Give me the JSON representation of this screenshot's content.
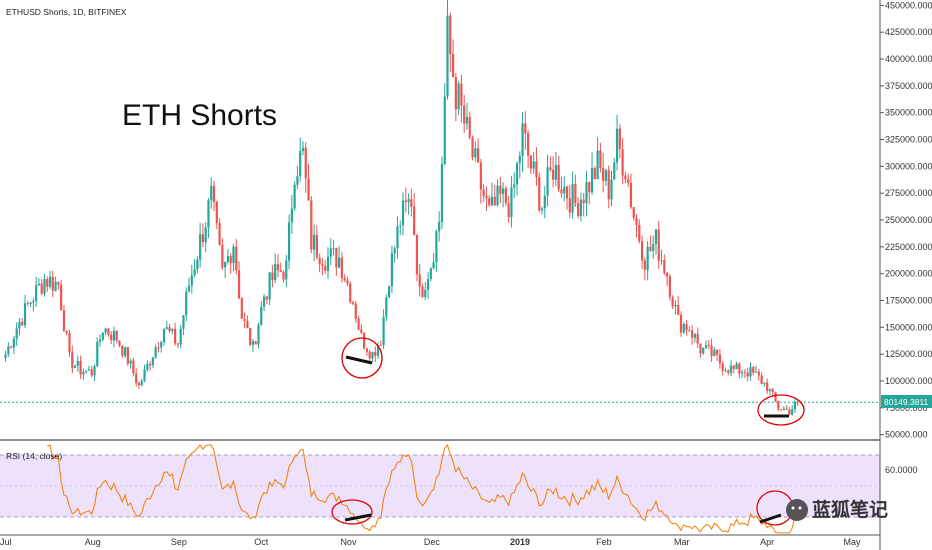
{
  "header": {
    "symbol_label": "ETHUSD Shorts, 1D, BITFINEX"
  },
  "annotation": {
    "title": "ETH Shorts"
  },
  "price_label": "80149.3811",
  "rsi_label": "RSI (14, close)",
  "watermark": {
    "text": "蓝狐笔记"
  },
  "colors": {
    "up": "#26a69a",
    "down": "#ef5350",
    "rsi_line": "#f57c00",
    "rsi_band": "#ede1fb",
    "price_line": "#26a69a",
    "annotation": "#e00000"
  },
  "chart_data": [
    {
      "type": "candlestick",
      "title": "ETHUSD Shorts, 1D, BITFINEX",
      "ylim": [
        45000,
        455000
      ],
      "y_ticks": [
        "450000.000",
        "425000.000",
        "400000.000",
        "375000.000",
        "350000.000",
        "325000.000",
        "300000.000",
        "275000.000",
        "250000.000",
        "225000.000",
        "200000.000",
        "175000.000",
        "150000.000",
        "125000.000",
        "100000.000",
        "75000.000",
        "50000.000"
      ],
      "x_ticks": [
        "Jul",
        "Aug",
        "Sep",
        "Oct",
        "Nov",
        "Dec",
        "2019",
        "Feb",
        "Mar",
        "Apr",
        "May"
      ],
      "last_price": 80149.3811,
      "approx_close_path": [
        [
          "2018-07-01",
          125000
        ],
        [
          "2018-07-05",
          150000
        ],
        [
          "2018-07-10",
          175000
        ],
        [
          "2018-07-15",
          195000
        ],
        [
          "2018-07-20",
          190000
        ],
        [
          "2018-07-24",
          120000
        ],
        [
          "2018-07-28",
          110000
        ],
        [
          "2018-08-01",
          108000
        ],
        [
          "2018-08-05",
          150000
        ],
        [
          "2018-08-10",
          140000
        ],
        [
          "2018-08-14",
          120000
        ],
        [
          "2018-08-18",
          95000
        ],
        [
          "2018-08-22",
          120000
        ],
        [
          "2018-08-27",
          150000
        ],
        [
          "2018-09-01",
          135000
        ],
        [
          "2018-09-05",
          190000
        ],
        [
          "2018-09-09",
          230000
        ],
        [
          "2018-09-13",
          270000
        ],
        [
          "2018-09-17",
          200000
        ],
        [
          "2018-09-21",
          230000
        ],
        [
          "2018-09-24",
          160000
        ],
        [
          "2018-09-28",
          130000
        ],
        [
          "2018-10-02",
          180000
        ],
        [
          "2018-10-06",
          200000
        ],
        [
          "2018-10-10",
          205000
        ],
        [
          "2018-10-13",
          300000
        ],
        [
          "2018-10-16",
          310000
        ],
        [
          "2018-10-19",
          230000
        ],
        [
          "2018-10-24",
          215000
        ],
        [
          "2018-10-29",
          215000
        ],
        [
          "2018-11-03",
          175000
        ],
        [
          "2018-11-06",
          140000
        ],
        [
          "2018-11-10",
          125000
        ],
        [
          "2018-11-13",
          140000
        ],
        [
          "2018-11-16",
          200000
        ],
        [
          "2018-11-20",
          250000
        ],
        [
          "2018-11-24",
          270000
        ],
        [
          "2018-11-27",
          180000
        ],
        [
          "2018-12-01",
          210000
        ],
        [
          "2018-12-04",
          250000
        ],
        [
          "2018-12-07",
          420000
        ],
        [
          "2018-12-10",
          370000
        ],
        [
          "2018-12-14",
          330000
        ],
        [
          "2018-12-18",
          290000
        ],
        [
          "2018-12-22",
          255000
        ],
        [
          "2018-12-26",
          270000
        ],
        [
          "2018-12-30",
          265000
        ],
        [
          "2019-01-03",
          330000
        ],
        [
          "2019-01-06",
          300000
        ],
        [
          "2019-01-10",
          265000
        ],
        [
          "2019-01-14",
          300000
        ],
        [
          "2019-01-18",
          280000
        ],
        [
          "2019-01-22",
          265000
        ],
        [
          "2019-01-26",
          280000
        ],
        [
          "2019-01-30",
          300000
        ],
        [
          "2019-02-03",
          280000
        ],
        [
          "2019-02-06",
          320000
        ],
        [
          "2019-02-09",
          300000
        ],
        [
          "2019-02-12",
          255000
        ],
        [
          "2019-02-16",
          215000
        ],
        [
          "2019-02-20",
          230000
        ],
        [
          "2019-02-24",
          200000
        ],
        [
          "2019-02-28",
          155000
        ],
        [
          "2019-03-04",
          150000
        ],
        [
          "2019-03-08",
          130000
        ],
        [
          "2019-03-12",
          125000
        ],
        [
          "2019-03-16",
          115000
        ],
        [
          "2019-03-20",
          110000
        ],
        [
          "2019-03-24",
          110000
        ],
        [
          "2019-03-28",
          105000
        ],
        [
          "2019-04-01",
          95000
        ],
        [
          "2019-04-05",
          75000
        ],
        [
          "2019-04-09",
          72000
        ],
        [
          "2019-04-12",
          80149
        ]
      ]
    },
    {
      "type": "line",
      "title": "RSI (14, close)",
      "y_ticks": [
        "60.0000"
      ],
      "band": [
        30,
        70
      ],
      "ylim": [
        25,
        80
      ]
    }
  ]
}
